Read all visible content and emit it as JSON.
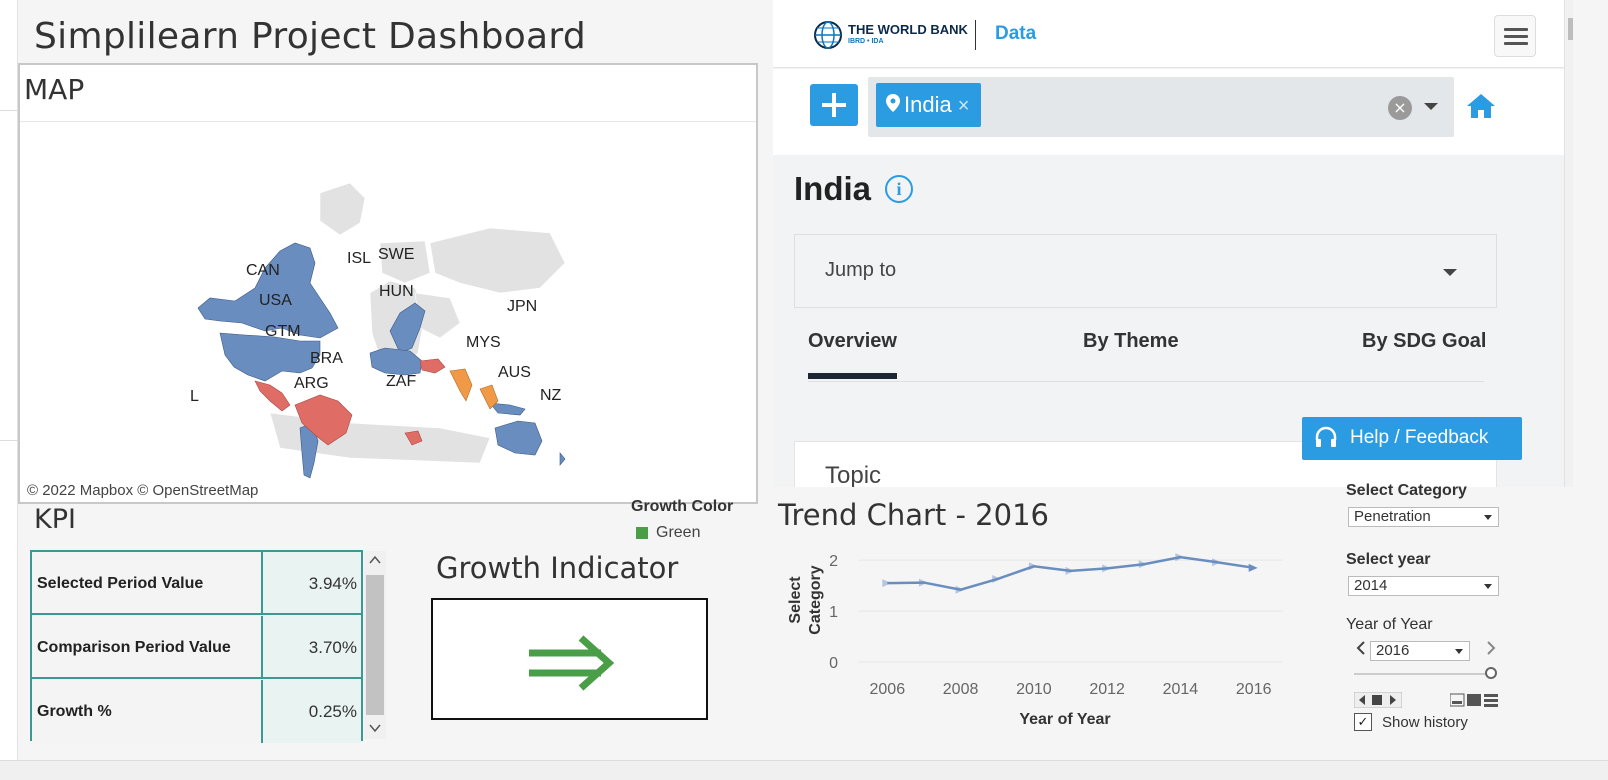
{
  "dashboard": {
    "title": "Simplilearn Project Dashboard"
  },
  "map": {
    "title": "MAP",
    "credit": "© 2022 Mapbox © OpenStreetMap",
    "labels": [
      "CAN",
      "USA",
      "GTM",
      "BRA",
      "ARG",
      "L",
      "ISL",
      "SWE",
      "HUN",
      "ZAF",
      "MYS",
      "JPN",
      "AUS",
      "NZ"
    ],
    "colors": {
      "blue": "#6a8dbf",
      "red": "#e06c66",
      "orange": "#f09a48",
      "land": "#e0e0e0"
    }
  },
  "worldbank": {
    "brand": "THE WORLD BANK",
    "brand_sub": "IBRD • IDA",
    "data_label": "Data",
    "chip": "India",
    "chip_remove": "×",
    "clear": "×",
    "country": "India",
    "info": "i",
    "jump_to": "Jump to",
    "tabs": [
      "Overview",
      "By Theme",
      "By SDG Goal"
    ],
    "topic": "Topic",
    "help": "Help / Feedback",
    "accent": "#2b9be2"
  },
  "kpi": {
    "title": "KPI",
    "rows": [
      {
        "label": "Selected Period Value",
        "value": "3.94%"
      },
      {
        "label": "Comparison Period Value",
        "value": "3.70%"
      },
      {
        "label": "Growth %",
        "value": "0.25%"
      }
    ],
    "scroll_up": "^",
    "scroll_down": "v"
  },
  "growth_color": {
    "title": "Growth Color",
    "item": "Green",
    "color": "#4a9e47"
  },
  "growth_indicator": {
    "title": "Growth Indicator",
    "arrow": "⇒"
  },
  "trend": {
    "title": "Trend Chart - 2016",
    "ylabel_line1": "Select",
    "ylabel_line2": "Category"
  },
  "chart_data": {
    "type": "line",
    "title": "Trend Chart - 2016",
    "xlabel": "Year of Year",
    "ylabel": "Select Category",
    "x": [
      2006,
      2007,
      2008,
      2009,
      2010,
      2011,
      2012,
      2013,
      2014,
      2015,
      2016
    ],
    "x_ticks": [
      2006,
      2008,
      2010,
      2012,
      2014,
      2016
    ],
    "y_ticks": [
      0,
      1,
      2
    ],
    "ylim": [
      0,
      2.2
    ],
    "series": [
      {
        "values": [
          1.55,
          1.56,
          1.42,
          1.63,
          1.88,
          1.79,
          1.84,
          1.92,
          2.06,
          1.96,
          1.85
        ]
      }
    ],
    "grid": true,
    "color": "#6a8dbf"
  },
  "controls": {
    "category": {
      "label": "Select Category",
      "value": "Penetration"
    },
    "year": {
      "label": "Select year",
      "value": "2014"
    },
    "year_of_year": {
      "label": "Year of Year",
      "value": "2016"
    },
    "show_history": "Show history",
    "show_history_checked": true
  }
}
